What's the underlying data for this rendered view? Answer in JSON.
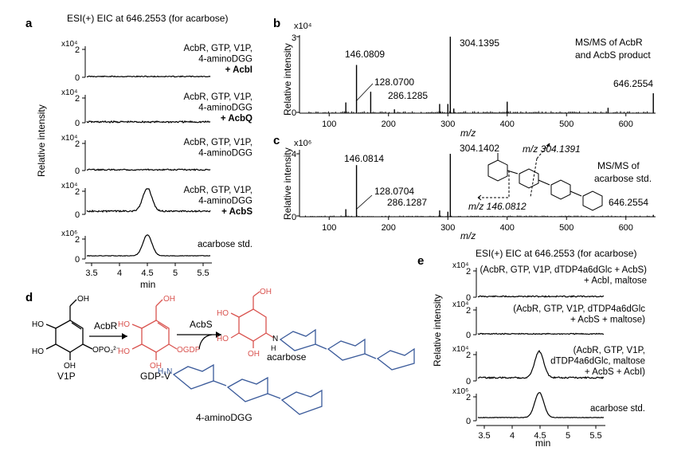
{
  "panel_labels": [
    "a",
    "b",
    "c",
    "d",
    "e"
  ],
  "colors": {
    "trace": "#000000",
    "red_structure": "#d9534f",
    "blue_structure": "#3a5a9a"
  },
  "panel_a": {
    "title": "ESI(+) EIC at 646.2553 (for acarbose)",
    "ylabel": "Relative intensity",
    "xlabel": "min",
    "xticks": [
      "3.5",
      "4",
      "4.5",
      "5",
      "5.5"
    ],
    "traces": [
      {
        "scale": "x10⁴",
        "ymax": "2",
        "ymin": "0",
        "l1": "AcbR, GTP, V1P,",
        "l2": "4-aminoDGG",
        "l3": "+ AcbI"
      },
      {
        "scale": "x10⁴",
        "ymax": "2",
        "ymin": "0",
        "l1": "AcbR, GTP, V1P,",
        "l2": "4-aminoDGG",
        "l3": "+ AcbQ"
      },
      {
        "scale": "x10⁴",
        "ymax": "2",
        "ymin": "0",
        "l1": "AcbR, GTP, V1P,",
        "l2": "4-aminoDGG",
        "l3": ""
      },
      {
        "scale": "x10⁴",
        "ymax": "2",
        "ymin": "0",
        "l1": "AcbR, GTP, V1P,",
        "l2": "4-aminoDGG",
        "l3": "+ AcbS"
      },
      {
        "scale": "x10⁶",
        "ymax": "2",
        "ymin": "0",
        "l1": "acarbose std.",
        "l2": "",
        "l3": ""
      }
    ]
  },
  "panel_b": {
    "scale": "x10⁴",
    "ymax": "3",
    "ymin": "0",
    "ylabel": "Relative intensity",
    "xlabel": "m/z",
    "xticks": [
      "100",
      "200",
      "300",
      "400",
      "500",
      "600"
    ],
    "title_l1": "MS/MS of AcbR",
    "title_l2": "and AcbS product",
    "peaks": [
      "146.0809",
      "128.0700",
      "304.1395",
      "286.1285",
      "646.2554"
    ]
  },
  "panel_c": {
    "scale": "x10⁶",
    "ymax": "4",
    "ymin": "0",
    "ylabel": "Relative intensity",
    "xlabel": "m/z",
    "xticks": [
      "100",
      "200",
      "300",
      "400",
      "500",
      "600"
    ],
    "title_l1": "MS/MS of",
    "title_l2": "acarbose std.",
    "peaks": [
      "146.0814",
      "128.0704",
      "304.1402",
      "286.1287",
      "646.2554"
    ],
    "frag1": "m/z 304.1391",
    "frag2": "m/z 146.0812"
  },
  "panel_d": {
    "v1p": "V1P",
    "gdpv": "GDP-V",
    "acarbose": "acarbose",
    "aminodgg": "4-aminoDGG",
    "enzyme1": "AcbR",
    "enzyme2": "AcbS",
    "atoms": {
      "ho": "HO",
      "oh": "OH",
      "opo3": "OPO₃²⁻",
      "ogdp": "OGDP",
      "h2n": "H₂N",
      "n": "N",
      "h": "H",
      "o": "O"
    }
  },
  "panel_e": {
    "title": "ESI(+) EIC at 646.2553 (for acarbose)",
    "ylabel": "Relative intensity",
    "xlabel": "min",
    "xticks": [
      "3.5",
      "4",
      "4.5",
      "5",
      "5.5"
    ],
    "traces": [
      {
        "scale": "x10⁴",
        "ymax": "2",
        "ymin": "0",
        "l1": "(AcbR, GTP, V1P, dTDP4a6dGlc + AcbS)",
        "l2": "+ AcbI, maltose",
        "l3": ""
      },
      {
        "scale": "x10⁴",
        "ymax": "2",
        "ymin": "0",
        "l1": "(AcbR, GTP, V1P, dTDP4a6dGlc",
        "l2": "+ AcbS + maltose)",
        "l3": ""
      },
      {
        "scale": "x10⁴",
        "ymax": "2",
        "ymin": "0",
        "l1": "(AcbR, GTP, V1P,",
        "l2": "dTDP4a6dGlc, maltose",
        "l3": "+ AcbS + AcbI)"
      },
      {
        "scale": "x10⁶",
        "ymax": "2",
        "ymin": "0",
        "l1": "acarbose std.",
        "l2": "",
        "l3": ""
      }
    ]
  }
}
